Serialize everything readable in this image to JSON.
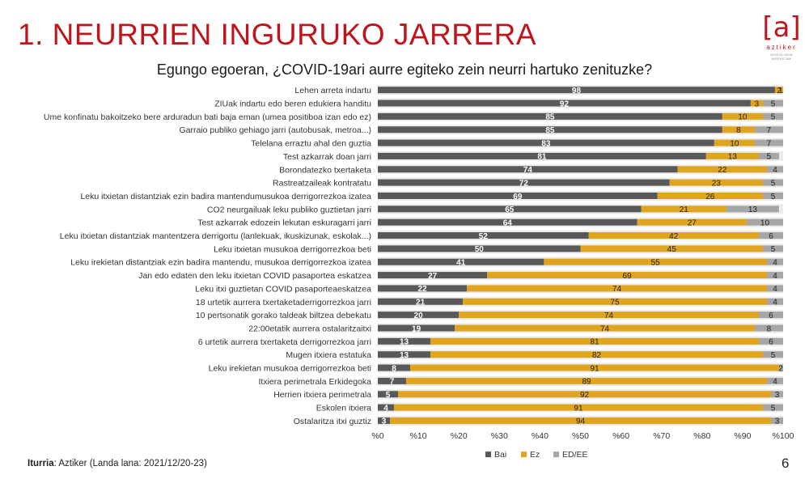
{
  "slide": {
    "title": "1. NEURRIEN INGURUKO JARRERA",
    "page_number": "6",
    "source_label": "Iturria",
    "source_text": ": Aztiker (Landa lana: 2021/12/20-23)"
  },
  "logo": {
    "mark": "[a]",
    "name": "aztiker",
    "tagline": "SOZIOLOGIA IKERKETAK"
  },
  "colors": {
    "bai": "#595959",
    "ez": "#e0a51e",
    "edee": "#a6a6a6",
    "title": "#c0141c",
    "stripe": "#ebebeb"
  },
  "chart_data": {
    "type": "bar",
    "orientation": "horizontal",
    "stacked": "percent",
    "title": "Egungo egoeran, ¿COVID-19ari aurre egiteko zein neurri hartuko zenituzke?",
    "categories": [
      "Lehen arreta indartu",
      "ZIUak indartu edo beren edukiera handitu",
      "Ume konfinatu bakoitzeko bere arduradun bati baja eman (umea positiboa izan edo ez)",
      "Garraio publiko gehiago jarri (autobusak, metroa...)",
      "Telelana erraztu ahal den guztia",
      "Test azkarrak doan jarri",
      "Borondatezko txertaketa",
      "Rastreatzaileak kontratatu",
      "Leku itxietan distantziak ezin badira mantendumusukoa derrigorrezkoa izatea",
      "CO2 neurgailuak leku publiko guztietan jarri",
      "Test azkarrak edozein lekutan eskuragarri jarri",
      "Leku itxietan distantziak mantentzera derrigortu (lanlekuak, ikuskizunak, eskolak...)",
      "Leku itxietan musukoa derrigorrezkoa beti",
      "Leku irekietan distantziak ezin badira mantendu, musukoa derrigorrezkoa izatea",
      "Jan edo edaten den leku itxietan COVID pasaportea eskatzea",
      "Leku itxi guztietan COVID pasaporteaeskatzea",
      "18 urtetik aurrera txertaketaderrigorrezkoa jarri",
      "10 pertsonatik gorako taldeak biltzea debekatu",
      "22:00etatik aurrera ostalaritzaitxi",
      "6 urtetik aurrera txertaketa derrigorrezkoa jarri",
      "Mugen itxiera estatuka",
      "Leku irekietan musukoa derrigorrezkoa beti",
      "Itxiera perimetrala Erkidegoka",
      "Herrien itxiera perimetrala",
      "Eskolen itxiera",
      "Ostalaritza itxi guztiz"
    ],
    "series": [
      {
        "name": "Bai",
        "values": [
          98,
          92,
          85,
          85,
          83,
          81,
          74,
          72,
          69,
          65,
          64,
          52,
          50,
          41,
          27,
          22,
          21,
          20,
          19,
          13,
          13,
          8,
          7,
          5,
          4,
          3
        ]
      },
      {
        "name": "Ez",
        "values": [
          2,
          3,
          10,
          8,
          10,
          13,
          22,
          23,
          26,
          21,
          27,
          42,
          45,
          55,
          69,
          74,
          75,
          74,
          74,
          81,
          82,
          91,
          89,
          92,
          91,
          94
        ]
      },
      {
        "name": "ED/EE",
        "values": [
          1,
          5,
          5,
          7,
          7,
          5,
          4,
          5,
          5,
          13,
          10,
          6,
          5,
          4,
          4,
          4,
          4,
          6,
          8,
          6,
          5,
          2,
          4,
          3,
          5,
          3
        ]
      }
    ],
    "x_ticks": [
      "%0",
      "%10",
      "%20",
      "%30",
      "%40",
      "%50",
      "%60",
      "%70",
      "%80",
      "%90",
      "%100"
    ],
    "xlim": [
      0,
      100
    ],
    "grid": false,
    "legend": "bottom"
  }
}
